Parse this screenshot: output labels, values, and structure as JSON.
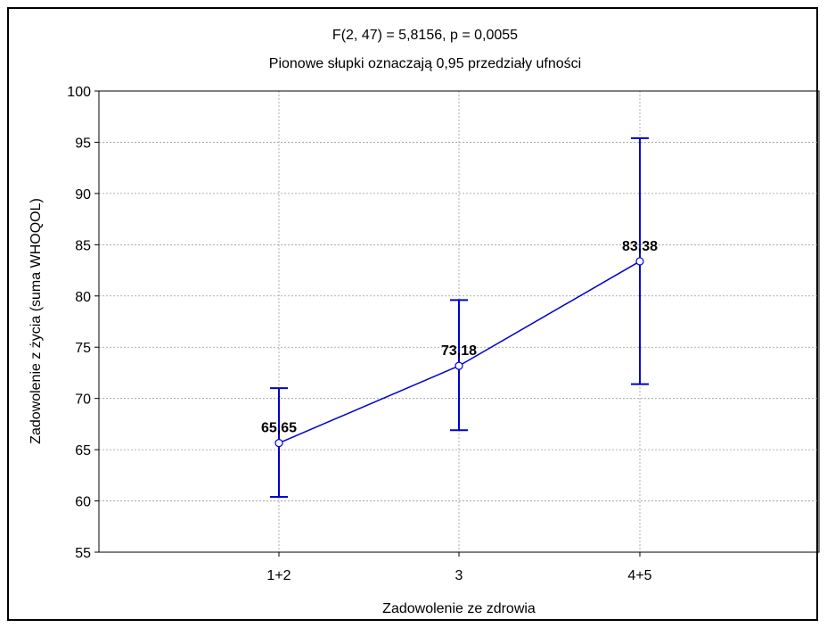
{
  "chart_data": {
    "type": "line",
    "title": "F(2, 47) = 5,8156, p = 0,0055",
    "subtitle": "Pionowe słupki oznaczają 0,95 przedziały ufności",
    "xlabel": "Zadowolenie ze zdrowia",
    "ylabel": "Zadowolenie z życia (suma WHOQOL)",
    "categories": [
      "1+2",
      "3",
      "4+5"
    ],
    "series": [
      {
        "values": [
          65.65,
          73.18,
          83.38
        ],
        "labels": [
          "65,65",
          "73,18",
          "83,38"
        ],
        "ci_lower": [
          60.4,
          66.9,
          71.4
        ],
        "ci_upper": [
          71.0,
          79.6,
          95.4
        ]
      }
    ],
    "ylim": [
      55,
      100
    ],
    "yticks": [
      55,
      60,
      65,
      70,
      75,
      80,
      85,
      90,
      95,
      100
    ],
    "grid": true,
    "color": "#0000cc"
  }
}
